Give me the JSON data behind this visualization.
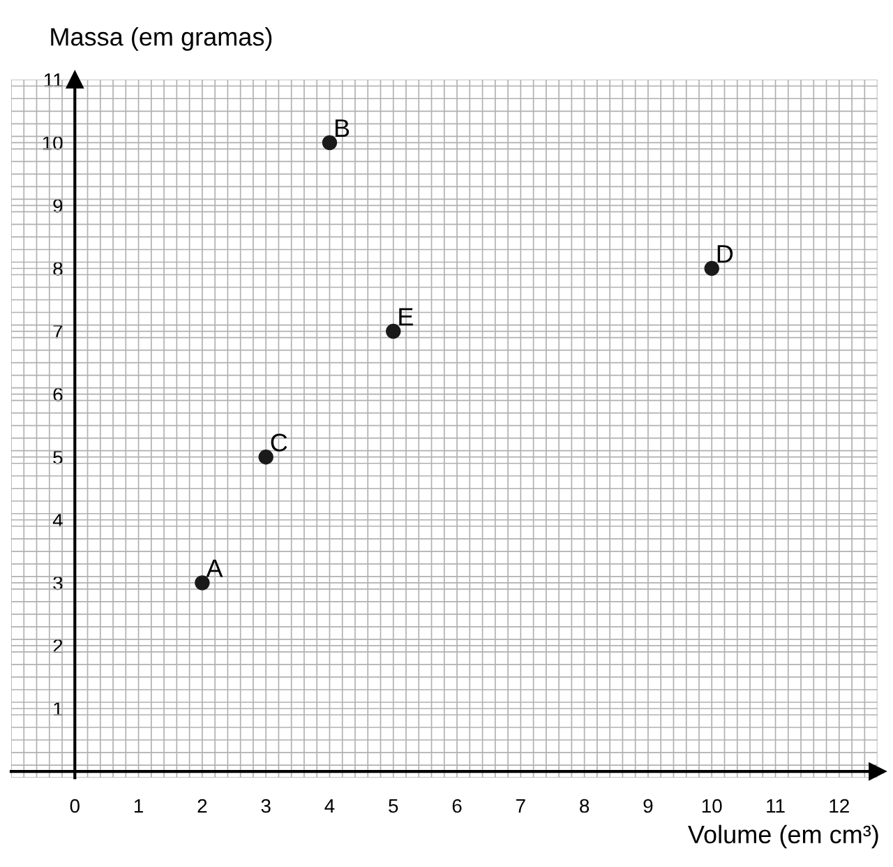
{
  "chart_data": {
    "type": "scatter",
    "xlabel": "Volume (em cm³)",
    "ylabel": "Massa (em gramas)",
    "x": [
      2,
      4,
      3,
      10,
      5
    ],
    "values": [
      3,
      10,
      5,
      8,
      7
    ],
    "color": "#1a1a1a",
    "marker": "circle",
    "xlim": [
      -1,
      12.6
    ],
    "ylim": [
      -0.1,
      11
    ],
    "xticks": [
      0,
      1,
      2,
      3,
      4,
      5,
      6,
      7,
      8,
      9,
      10,
      11,
      12
    ],
    "yticks": [
      1,
      2,
      3,
      4,
      5,
      6,
      7,
      8,
      9,
      10,
      11
    ],
    "grid": true,
    "annotations": [
      {
        "text": "A",
        "x": 2,
        "y": 3
      },
      {
        "text": "B",
        "x": 4,
        "y": 10
      },
      {
        "text": "C",
        "x": 3,
        "y": 5
      },
      {
        "text": "D",
        "x": 10,
        "y": 8
      },
      {
        "text": "E",
        "x": 5,
        "y": 7
      }
    ]
  }
}
